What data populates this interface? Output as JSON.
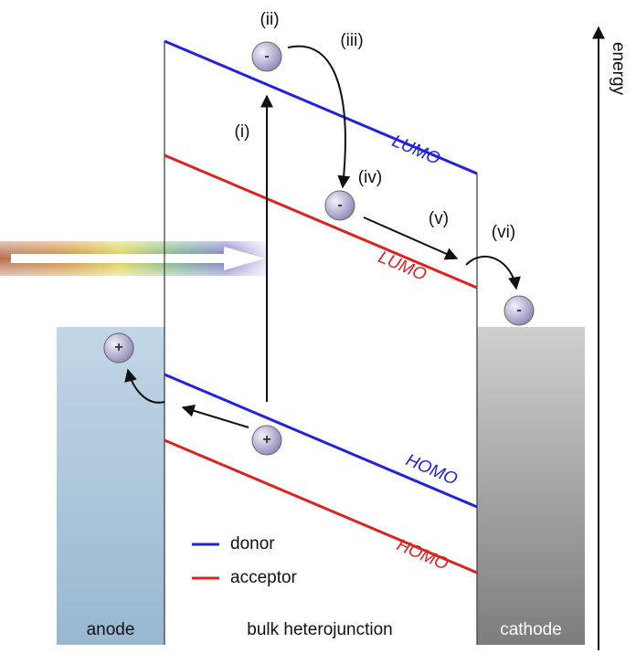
{
  "steps": {
    "i": "(i)",
    "ii": "(ii)",
    "iii": "(iii)",
    "iv": "(iv)",
    "v": "(v)",
    "vi": "(vi)"
  },
  "levels": {
    "donor_lumo": "LUMO",
    "acceptor_lumo": "LUMO",
    "donor_homo": "HOMO",
    "acceptor_homo": "HOMO"
  },
  "axis": "energy",
  "legend": {
    "donor": "donor",
    "acceptor": "acceptor"
  },
  "regions": {
    "anode": "anode",
    "bulk": "bulk heterojunction",
    "cathode": "cathode"
  },
  "charges": {
    "electron": "-",
    "hole": "+"
  }
}
